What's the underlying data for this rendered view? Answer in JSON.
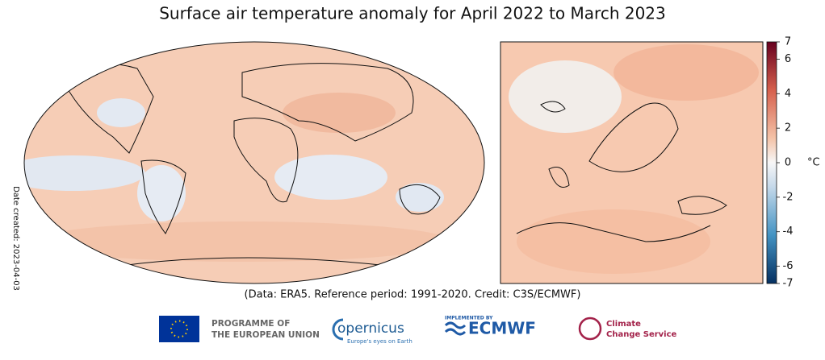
{
  "title": "Surface air temperature anomaly for April 2022 to March 2023",
  "caption": "(Data: ERA5.  Reference period: 1991-2020.  Credit: C3S/ECMWF)",
  "date_created": "Date created: 2023-04-03",
  "colorbar": {
    "unit": "°C",
    "range": [
      -7,
      7
    ],
    "ticks": [
      7,
      6,
      4,
      2,
      0,
      -2,
      -4,
      -6,
      -7
    ]
  },
  "logos": {
    "eu": [
      "PROGRAMME OF",
      "THE EUROPEAN UNION"
    ],
    "copernicus": {
      "name": "opernicus",
      "tagline": "Europe's eyes on Earth"
    },
    "ecmwf": {
      "note": "IMPLEMENTED BY",
      "name": "ECMWF"
    },
    "c3s": [
      "Climate",
      "Change Service"
    ]
  }
}
